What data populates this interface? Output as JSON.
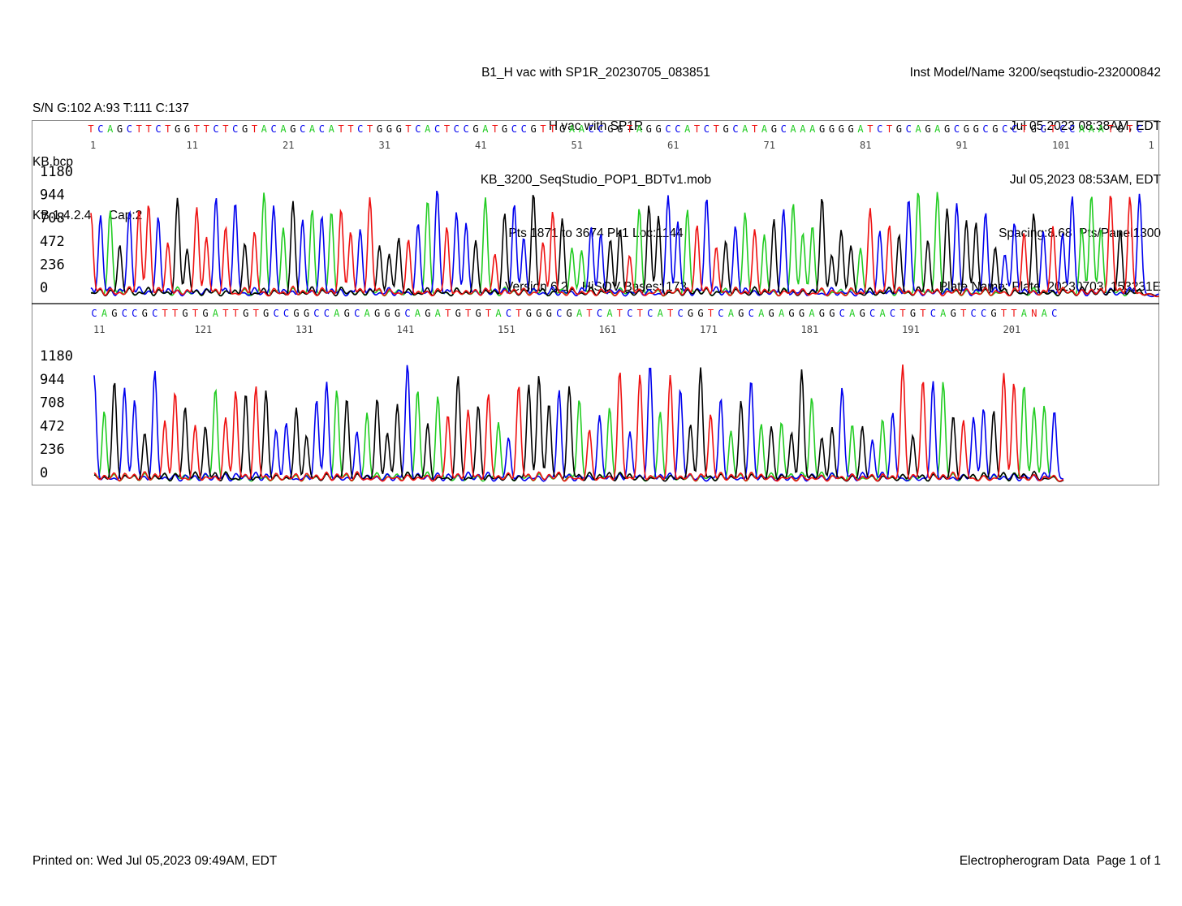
{
  "header": {
    "center_lines": [
      "B1_H vac with SP1R_20230705_083851",
      "H vac with SP1R",
      "KB_3200_SeqStudio_POP1_BDTv1.mob",
      "Pts 1871 to 3674 Pk1 Loc:1144",
      "Version 6.2    HiSQV Bases: 173"
    ],
    "right_lines": [
      "Inst Model/Name 3200/seqstudio-232000842",
      "Jul 05,2023 08:38AM, EDT",
      "Jul 05,2023 08:53AM, EDT",
      "Spacing:8.68  Pts/Panel1300",
      "Plate Name: Plate_20230703_153231E"
    ],
    "left_lines": [
      "S/N G:102 A:93 T:111 C:137",
      "KB.bcp",
      "KB 1.4.2.4     Cap:2"
    ]
  },
  "footer": {
    "printed": "Printed on: Wed Jul 05,2023 09:49AM, EDT",
    "page": "Electropherogram Data  Page 1 of 1"
  },
  "colors": {
    "A": "#22cc22",
    "C": "#0000ee",
    "G": "#000000",
    "T": "#ee1111",
    "N": "#ee1111"
  },
  "chart_data": {
    "type": "line",
    "title": "Electropherogram",
    "y_ticks": [
      "1180",
      "944",
      "708",
      "472",
      "236",
      "0"
    ],
    "ylim": [
      0,
      1180
    ],
    "series": [
      {
        "name": "A",
        "color": "#22cc22"
      },
      {
        "name": "C",
        "color": "#0000ee"
      },
      {
        "name": "G",
        "color": "#000000"
      },
      {
        "name": "T",
        "color": "#ee1111"
      }
    ],
    "panels": [
      {
        "sequence": "TCAGCTTCTGGTTCTCGTACAGCACATTCTGGGTCACTCCGATGCCGTTGAACCGGTAGGCCATCTGCATAGCAAAGGGGATCTGCAGAGCGGCGCCTGCTCCAAATGTC",
        "position_labels": [
          "1",
          "11",
          "21",
          "31",
          "41",
          "51",
          "61",
          "71",
          "81",
          "91",
          "101",
          "1"
        ]
      },
      {
        "sequence": "CAGCCGCTTGTGATTGTGCCGGCCAGCAGGGCAGATGTGTACTGGGCGATCATCTCATCGGTCAGCAGAGGAGGCAGCACTGTCAGTCCGTTANAC",
        "position_labels": [
          "11",
          "121",
          "131",
          "141",
          "151",
          "161",
          "171",
          "181",
          "191",
          "201"
        ]
      }
    ]
  }
}
